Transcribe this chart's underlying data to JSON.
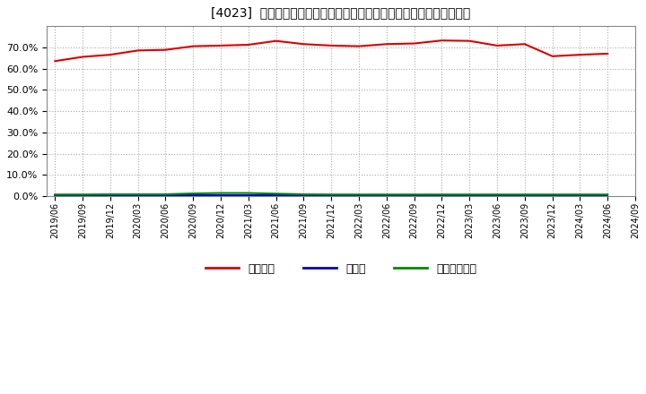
{
  "title": "[4023]  自己資本、のれん、繰延税金資産の総資産に対する比率の推移",
  "background_color": "#ffffff",
  "plot_bg_color": "#ffffff",
  "grid_color": "#aaaaaa",
  "series": {
    "jikoshihon": {
      "label": "自己資本",
      "color": "#dd0000",
      "data": [
        [
          "2019/06",
          63.5
        ],
        [
          "2019/09",
          65.5
        ],
        [
          "2019/12",
          66.5
        ],
        [
          "2020/03",
          68.5
        ],
        [
          "2020/06",
          68.8
        ],
        [
          "2020/09",
          70.5
        ],
        [
          "2020/12",
          70.8
        ],
        [
          "2021/03",
          71.2
        ],
        [
          "2021/06",
          73.0
        ],
        [
          "2021/09",
          71.5
        ],
        [
          "2021/12",
          70.8
        ],
        [
          "2022/03",
          70.5
        ],
        [
          "2022/06",
          71.5
        ],
        [
          "2022/09",
          71.8
        ],
        [
          "2022/12",
          73.2
        ],
        [
          "2023/03",
          73.0
        ],
        [
          "2023/06",
          70.8
        ],
        [
          "2023/09",
          71.5
        ],
        [
          "2023/12",
          65.8
        ],
        [
          "2024/03",
          66.5
        ],
        [
          "2024/06",
          67.0
        ]
      ]
    },
    "noren": {
      "label": "のれん",
      "color": "#0000cc",
      "data": [
        [
          "2019/06",
          0.3
        ],
        [
          "2019/09",
          0.3
        ],
        [
          "2019/12",
          0.3
        ],
        [
          "2020/03",
          0.3
        ],
        [
          "2020/06",
          0.3
        ],
        [
          "2020/09",
          0.3
        ],
        [
          "2020/12",
          0.3
        ],
        [
          "2021/03",
          0.3
        ],
        [
          "2021/06",
          0.3
        ],
        [
          "2021/09",
          0.3
        ],
        [
          "2021/12",
          0.3
        ],
        [
          "2022/03",
          0.3
        ],
        [
          "2022/06",
          0.3
        ],
        [
          "2022/09",
          0.3
        ],
        [
          "2022/12",
          0.3
        ],
        [
          "2023/03",
          0.3
        ],
        [
          "2023/06",
          0.3
        ],
        [
          "2023/09",
          0.3
        ],
        [
          "2023/12",
          0.3
        ],
        [
          "2024/03",
          0.3
        ],
        [
          "2024/06",
          0.3
        ]
      ]
    },
    "kurinobe": {
      "label": "繰延税金資産",
      "color": "#008800",
      "data": [
        [
          "2019/06",
          0.8
        ],
        [
          "2019/09",
          0.8
        ],
        [
          "2019/12",
          0.9
        ],
        [
          "2020/03",
          0.9
        ],
        [
          "2020/06",
          0.9
        ],
        [
          "2020/09",
          1.3
        ],
        [
          "2020/12",
          1.5
        ],
        [
          "2021/03",
          1.5
        ],
        [
          "2021/06",
          1.2
        ],
        [
          "2021/09",
          0.9
        ],
        [
          "2021/12",
          0.8
        ],
        [
          "2022/03",
          0.8
        ],
        [
          "2022/06",
          0.8
        ],
        [
          "2022/09",
          0.8
        ],
        [
          "2022/12",
          0.8
        ],
        [
          "2023/03",
          0.8
        ],
        [
          "2023/06",
          0.8
        ],
        [
          "2023/09",
          0.8
        ],
        [
          "2023/12",
          0.8
        ],
        [
          "2024/03",
          0.8
        ],
        [
          "2024/06",
          0.8
        ]
      ]
    }
  },
  "xtick_labels": [
    "2019/06",
    "2019/09",
    "2019/12",
    "2020/03",
    "2020/06",
    "2020/09",
    "2020/12",
    "2021/03",
    "2021/06",
    "2021/09",
    "2021/12",
    "2022/03",
    "2022/06",
    "2022/09",
    "2022/12",
    "2023/03",
    "2023/06",
    "2023/09",
    "2023/12",
    "2024/03",
    "2024/06",
    "2024/09"
  ],
  "ylim": [
    0,
    80
  ],
  "yticks": [
    0,
    10,
    20,
    30,
    40,
    50,
    60,
    70
  ],
  "legend_labels": [
    "自己資本",
    "のれん",
    "繰延税金資産"
  ],
  "legend_colors": [
    "#dd0000",
    "#0000cc",
    "#008800"
  ]
}
